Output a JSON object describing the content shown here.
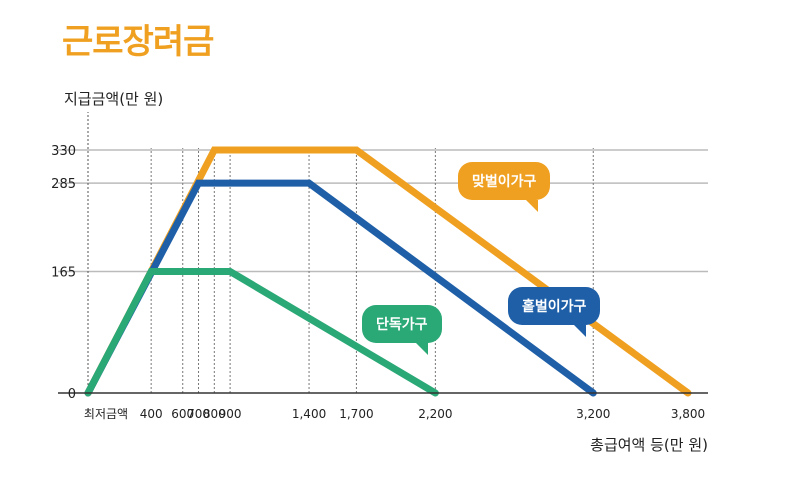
{
  "title": "근로장려금",
  "colors": {
    "title": "#f0a020",
    "dual_earner": "#f0a020",
    "single_earner": "#1e5fa8",
    "single_household": "#2aa876",
    "grid": "#bbbbbb",
    "axis": "#333333"
  },
  "chart_data": {
    "type": "line",
    "title": "근로장려금",
    "ylabel": "지급금액(만 원)",
    "xlabel": "총급여액 등(만 원)",
    "xlim": [
      0,
      3800
    ],
    "ylim": [
      0,
      330
    ],
    "x_ticks": [
      {
        "value": 0,
        "label": "최저금액"
      },
      {
        "value": 400,
        "label": "400"
      },
      {
        "value": 600,
        "label": "600"
      },
      {
        "value": 700,
        "label": "700"
      },
      {
        "value": 800,
        "label": "800"
      },
      {
        "value": 900,
        "label": "900"
      },
      {
        "value": 1400,
        "label": "1,400"
      },
      {
        "value": 1700,
        "label": "1,700"
      },
      {
        "value": 2200,
        "label": "2,200"
      },
      {
        "value": 3200,
        "label": "3,200"
      },
      {
        "value": 3800,
        "label": "3,800"
      }
    ],
    "y_ticks": [
      {
        "value": 0,
        "label": "0"
      },
      {
        "value": 165,
        "label": "165"
      },
      {
        "value": 285,
        "label": "285"
      },
      {
        "value": 330,
        "label": "330"
      }
    ],
    "series": [
      {
        "name": "맞벌이가구",
        "color_key": "dual_earner",
        "x": [
          0,
          800,
          1700,
          3800
        ],
        "y": [
          0,
          330,
          330,
          0
        ]
      },
      {
        "name": "홑벌이가구",
        "color_key": "single_earner",
        "x": [
          0,
          700,
          1400,
          3200
        ],
        "y": [
          0,
          285,
          285,
          0
        ]
      },
      {
        "name": "단독가구",
        "color_key": "single_household",
        "x": [
          0,
          400,
          900,
          2200
        ],
        "y": [
          0,
          165,
          165,
          0
        ]
      }
    ]
  }
}
